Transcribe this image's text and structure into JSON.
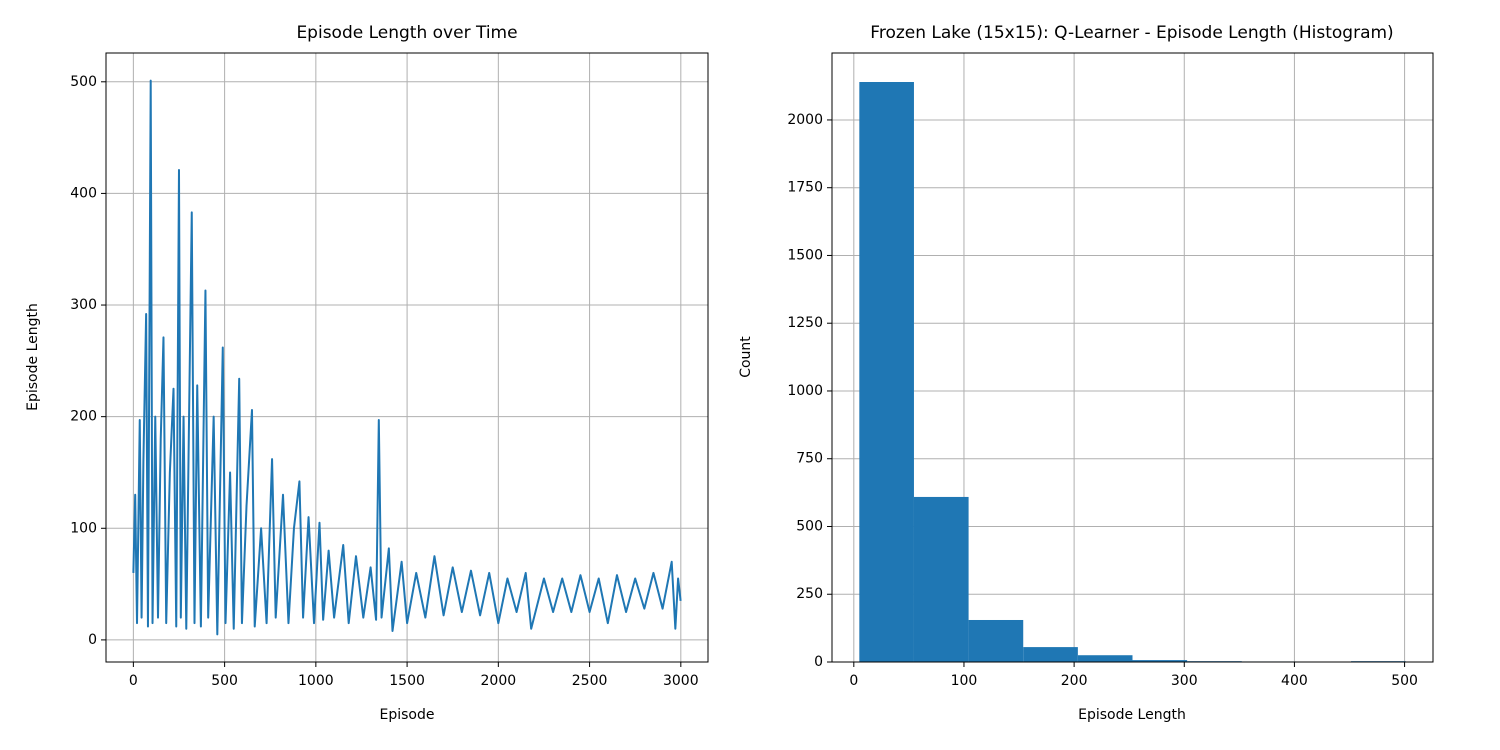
{
  "chart_data": [
    {
      "type": "line",
      "title": "Episode Length over Time",
      "x_label": "Episode",
      "y_label": "Episode Length",
      "x": [
        0,
        10,
        20,
        35,
        45,
        55,
        70,
        80,
        95,
        105,
        120,
        135,
        150,
        165,
        180,
        200,
        220,
        235,
        250,
        260,
        275,
        290,
        320,
        335,
        350,
        370,
        395,
        410,
        440,
        460,
        490,
        505,
        530,
        550,
        580,
        595,
        620,
        650,
        665,
        700,
        730,
        760,
        780,
        820,
        850,
        880,
        910,
        930,
        960,
        990,
        1020,
        1040,
        1070,
        1100,
        1150,
        1180,
        1220,
        1260,
        1300,
        1330,
        1345,
        1360,
        1400,
        1420,
        1470,
        1500,
        1550,
        1600,
        1650,
        1700,
        1750,
        1800,
        1850,
        1900,
        1950,
        2000,
        2050,
        2100,
        2150,
        2180,
        2250,
        2300,
        2350,
        2400,
        2450,
        2500,
        2550,
        2600,
        2650,
        2700,
        2750,
        2800,
        2850,
        2900,
        2950,
        2970,
        2985,
        2999
      ],
      "series": [
        {
          "name": "Episode Length",
          "color": "#1f77b4",
          "values": [
            60,
            130,
            15,
            197,
            20,
            160,
            292,
            12,
            501,
            15,
            200,
            20,
            180,
            271,
            15,
            150,
            225,
            12,
            421,
            20,
            200,
            10,
            383,
            15,
            228,
            12,
            313,
            20,
            200,
            5,
            262,
            15,
            150,
            10,
            234,
            15,
            120,
            206,
            12,
            100,
            15,
            162,
            20,
            130,
            15,
            100,
            142,
            20,
            110,
            15,
            105,
            18,
            80,
            20,
            85,
            15,
            75,
            20,
            65,
            18,
            197,
            20,
            82,
            8,
            70,
            15,
            60,
            20,
            75,
            22,
            65,
            25,
            62,
            22,
            60,
            15,
            55,
            25,
            60,
            10,
            55,
            25,
            55,
            25,
            58,
            25,
            55,
            15,
            58,
            25,
            55,
            28,
            60,
            28,
            70,
            10,
            55,
            35
          ]
        }
      ],
      "xlim": [
        -149.95,
        3148.95
      ],
      "xticks": [
        0,
        500,
        1000,
        1500,
        2000,
        2500,
        3000
      ],
      "ylim": [
        -19.8,
        525.8
      ],
      "yticks": [
        0,
        100,
        200,
        300,
        400,
        500
      ],
      "grid": true
    },
    {
      "type": "histogram",
      "title": "Frozen Lake (15x15): Q-Learner - Episode Length (Histogram)",
      "x_label": "Episode Length",
      "y_label": "Count",
      "bins": [
        5,
        54.6,
        104.2,
        153.8,
        203.4,
        253,
        302.6,
        352.2,
        401.8,
        451.4,
        501
      ],
      "values": [
        2140,
        609,
        155,
        55,
        25,
        7,
        3,
        2,
        1,
        3
      ],
      "color": "#1f77b4",
      "xlim": [
        -19.8,
        525.8
      ],
      "xticks": [
        0,
        100,
        200,
        300,
        400,
        500
      ],
      "ylim": [
        0,
        2247
      ],
      "yticks": [
        0,
        250,
        500,
        750,
        1000,
        1250,
        1500,
        1750,
        2000
      ],
      "grid": true
    }
  ]
}
